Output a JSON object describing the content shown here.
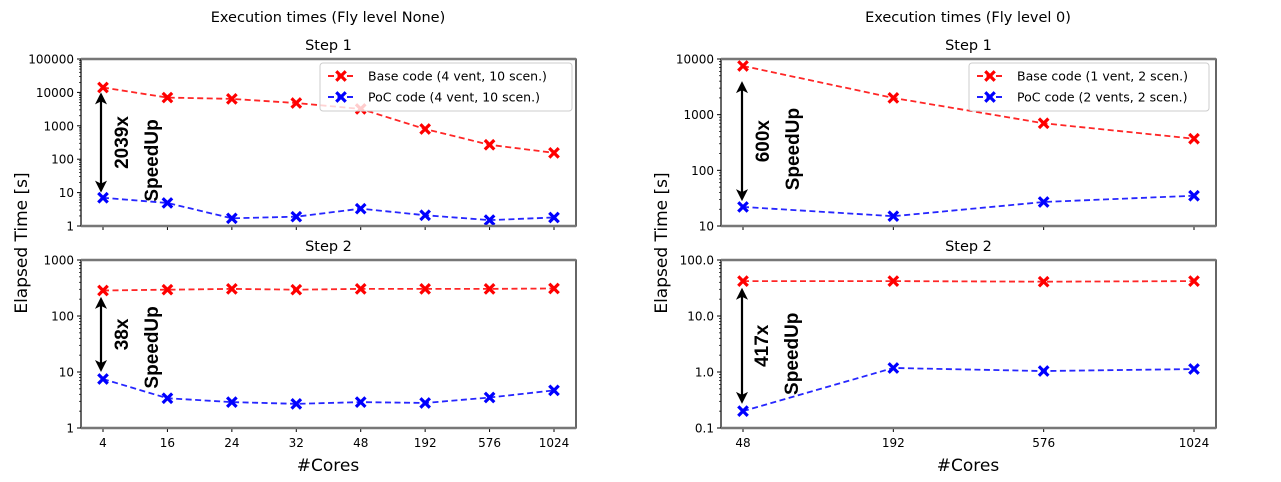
{
  "chart_data": [
    {
      "type": "line",
      "suptitle": "Execution times (Fly level None)",
      "title": "Step 1",
      "xlabel": "",
      "ylabel": "Elapsed Time [s]",
      "yscale": "log",
      "ylim": [
        1,
        100000
      ],
      "yticks": [
        "1",
        "10",
        "100",
        "1000",
        "10000",
        "100000"
      ],
      "categories": [
        "4",
        "16",
        "24",
        "32",
        "48",
        "192",
        "576",
        "1024"
      ],
      "legend_position": "top-right",
      "series": [
        {
          "name": "Base code (4 vent, 10 scen.)",
          "color": "#ff0000",
          "values": [
            14000,
            7000,
            6400,
            4800,
            3200,
            800,
            270,
            155
          ]
        },
        {
          "name": "PoC code (4 vent, 10 scen.)",
          "color": "#0000ff",
          "values": [
            7,
            4.9,
            1.7,
            1.9,
            3.3,
            2.1,
            1.5,
            1.8
          ]
        }
      ],
      "annotation": {
        "value": "2039x",
        "label": "SpeedUp",
        "from": 10000,
        "to": 10
      }
    },
    {
      "type": "line",
      "title": "Step 2",
      "xlabel": "#Cores",
      "ylabel": "Elapsed Time [s]",
      "yscale": "log",
      "ylim": [
        1,
        1000
      ],
      "yticks": [
        "1",
        "10",
        "100",
        "1000"
      ],
      "categories": [
        "4",
        "16",
        "24",
        "32",
        "48",
        "192",
        "576",
        "1024"
      ],
      "series": [
        {
          "name": "Base code (4 vent, 10 scen.)",
          "color": "#ff0000",
          "values": [
            285,
            295,
            305,
            295,
            305,
            305,
            305,
            310
          ]
        },
        {
          "name": "PoC code (4 vent, 10 scen.)",
          "color": "#0000ff",
          "values": [
            7.5,
            3.4,
            2.9,
            2.7,
            2.9,
            2.8,
            3.5,
            4.7
          ]
        }
      ],
      "annotation": {
        "value": "38x",
        "label": "SpeedUp",
        "from": 220,
        "to": 10
      }
    },
    {
      "type": "line",
      "suptitle": "Execution times (Fly level 0)",
      "title": "Step 1",
      "xlabel": "",
      "ylabel": "Elapsed Time [s]",
      "yscale": "log",
      "ylim": [
        10,
        10000
      ],
      "yticks": [
        "10",
        "100",
        "1000",
        "10000"
      ],
      "categories": [
        "48",
        "192",
        "576",
        "1024"
      ],
      "legend_position": "top-right",
      "series": [
        {
          "name": "Base code (1 vent, 2 scen.)",
          "color": "#ff0000",
          "values": [
            7500,
            2000,
            700,
            370
          ]
        },
        {
          "name": "PoC code (2 vents, 2 scen.)",
          "color": "#0000ff",
          "values": [
            22,
            15,
            27,
            35
          ]
        }
      ],
      "annotation": {
        "value": "600x",
        "label": "SpeedUp",
        "from": 4000,
        "to": 28
      }
    },
    {
      "type": "line",
      "title": "Step 2",
      "xlabel": "#Cores",
      "ylabel": "Elapsed Time [s]",
      "yscale": "log",
      "ylim": [
        0.1,
        100
      ],
      "yticks": [
        "0.1",
        "1.0",
        "10.0",
        "100.0"
      ],
      "categories": [
        "48",
        "192",
        "576",
        "1024"
      ],
      "series": [
        {
          "name": "Base code (1 vent, 2 scen.)",
          "color": "#ff0000",
          "values": [
            42,
            42,
            41,
            42
          ]
        },
        {
          "name": "PoC code (2 vents, 2 scen.)",
          "color": "#0000ff",
          "values": [
            0.2,
            1.18,
            1.04,
            1.13
          ]
        }
      ],
      "annotation": {
        "value": "417x",
        "label": "SpeedUp",
        "from": 32,
        "to": 0.27
      }
    }
  ]
}
